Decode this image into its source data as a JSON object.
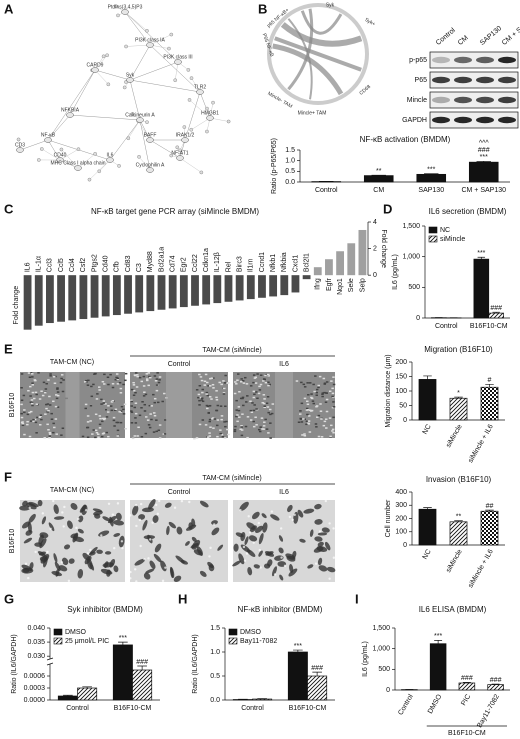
{
  "network": {
    "panel": "A",
    "nodes": [
      "PtdIns(3,4,5)P3",
      "PI3K class IA",
      "PI3K class III",
      "Syk",
      "CARD9",
      "NFKBIA",
      "NF-κB",
      "IL6",
      "HMGB1",
      "TLR2",
      "IRAK1/2",
      "CD40",
      "Cyclophilin A",
      "Calcineurin A",
      "MHC Class I alpha chain",
      "CD3",
      "BAFF",
      "NF-AT1"
    ]
  },
  "blot": {
    "panel": "B",
    "chord_labels": [
      "Syk",
      "Syk+",
      "CD68",
      "Mincle+ TAM",
      "Mincle- TAM",
      "P65 NF-κB",
      "p65 NF-κB+"
    ],
    "lanes": [
      "Control",
      "CM",
      "SAP130",
      "CM + SAP130"
    ],
    "rows": [
      "p-p65",
      "P65",
      "Mincle",
      "GAPDH"
    ]
  },
  "micrographs": [
    {
      "panel": "E",
      "row_label": "B16F10",
      "left": "TAM-CM (NC)",
      "group": "TAM-CM (siMincle)",
      "columns": [
        "Control",
        "IL6"
      ]
    },
    {
      "panel": "F",
      "row_label": "B16F10",
      "left": "TAM-CM (NC)",
      "group": "TAM-CM (siMincle)",
      "columns": [
        "Control",
        "IL6"
      ]
    }
  ],
  "chart_data": [
    {
      "type": "bar",
      "title": "NF-κB activation (BMDM)",
      "ylabel": "Ratio (p-P65/P65)",
      "categories": [
        "Control",
        "CM",
        "SAP130",
        "CM + SAP130"
      ],
      "values": [
        0.02,
        0.3,
        0.36,
        0.93
      ],
      "errors": [
        0.01,
        0.02,
        0.03,
        0.04
      ],
      "color": "#111111",
      "ylim": [
        0,
        1.5
      ],
      "yticks": [
        {
          "value": 0,
          "label": "0.0"
        },
        0.5,
        {
          "value": 1,
          "label": "1.0"
        },
        1.5
      ],
      "annotations": [
        {
          "text": "**",
          "category": 1
        },
        {
          "text": "***",
          "category": 2
        },
        {
          "text": "***",
          "category": 3
        },
        {
          "text": "###",
          "category": 3
        },
        {
          "text": "^^^",
          "category": 3
        }
      ]
    },
    {
      "type": "bar",
      "panel": "C",
      "title": "NF-κB target gene PCR array (siMincle BMDM)",
      "ylabel": "Fold change",
      "ytick_side": "right",
      "categories": [
        "IL6",
        "IL-1α",
        "Ccl3",
        "Ccl5",
        "Ccl4",
        "Csf2",
        "Ptgs2",
        "Cd40",
        "Cfb",
        "Cd83",
        "C3",
        "Myd88",
        "Bcl2a1a",
        "Cd74",
        "Egr2",
        "Ccl22",
        "Cdkn1a",
        "IL-12β",
        "Rel",
        "Birc3",
        "Il1rn",
        "Ccnd1",
        "Nfkb1",
        "Nfkbia",
        "Cxcl1",
        "Bcl2l1",
        "Ifng",
        "Egfr",
        "Nqo1",
        "Sele",
        "Selp"
      ],
      "values": [
        -4.1,
        -3.8,
        -3.6,
        -3.5,
        -3.4,
        -3.3,
        -3.2,
        -3.1,
        -3.0,
        -2.9,
        -2.8,
        -2.7,
        -2.6,
        -2.5,
        -2.4,
        -2.3,
        -2.2,
        -2.1,
        -2.0,
        -1.9,
        -1.8,
        -1.7,
        -1.6,
        -1.5,
        -1.3,
        -0.3,
        0.6,
        1.2,
        1.8,
        2.4,
        3.4
      ],
      "color_negative": "#4a4a4a",
      "color_positive": "#a0a0a0",
      "ylim": [
        -4.5,
        4
      ],
      "yticks": [
        0,
        2,
        4
      ]
    },
    {
      "type": "bar",
      "panel": "D",
      "title": "IL6 secretion (BMDM)",
      "ylabel": "IL6 (pg/mL)",
      "categories": [
        "Control",
        "B16F10-CM"
      ],
      "series": [
        {
          "name": "NC",
          "color": "#111111",
          "pattern": "solid",
          "values": [
            5,
            960
          ],
          "errors": [
            2,
            30
          ]
        },
        {
          "name": "siMincle",
          "color": "#111111",
          "pattern": "hatch",
          "values": [
            3,
            80
          ],
          "errors": [
            2,
            15
          ]
        }
      ],
      "ylim": [
        0,
        1500
      ],
      "yticks": [
        0,
        500,
        {
          "value": 1000,
          "label": "1,000"
        },
        {
          "value": 1500,
          "label": "1,500"
        }
      ],
      "legend": "upper left",
      "annotations": [
        {
          "text": "***",
          "category": 1,
          "series": 0
        },
        {
          "text": "###",
          "category": 1,
          "series": 1
        }
      ]
    },
    {
      "type": "bar",
      "title": "Migration (B16F10)",
      "ylabel": "Migration distance (μm)",
      "categories": [
        "NC",
        "siMincle",
        "siMincle + IL6"
      ],
      "values": [
        140,
        75,
        113
      ],
      "errors": [
        12,
        4,
        10
      ],
      "color": "#111111",
      "patterns": [
        "solid",
        "hatch",
        "check"
      ],
      "ylim": [
        0,
        200
      ],
      "yticks": [
        0,
        50,
        100,
        150,
        200
      ],
      "annotations": [
        {
          "text": "*",
          "category": 1
        },
        {
          "text": "#",
          "category": 2
        }
      ]
    },
    {
      "type": "bar",
      "title": "Invasion (B16F10)",
      "ylabel": "Cell number",
      "categories": [
        "NC",
        "siMincle",
        "siMincle + IL6"
      ],
      "values": [
        270,
        175,
        255
      ],
      "errors": [
        12,
        8,
        8
      ],
      "color": "#111111",
      "patterns": [
        "solid",
        "hatch",
        "check"
      ],
      "ylim": [
        0,
        400
      ],
      "yticks": [
        0,
        100,
        200,
        300,
        400
      ],
      "annotations": [
        {
          "text": "**",
          "category": 1
        },
        {
          "text": "##",
          "category": 2
        }
      ]
    },
    {
      "type": "bar",
      "panel": "G",
      "title": "Syk inhibitor (BMDM)",
      "ylabel": "Ratio (IL6/GAPDH)",
      "categories": [
        "Control",
        "B16F10-CM"
      ],
      "series": [
        {
          "name": "DMSO",
          "color": "#111111",
          "pattern": "solid",
          "values": [
            0.0001,
            0.034
          ],
          "errors": [
            2e-05,
            0.001
          ]
        },
        {
          "name": "25 μmol/L PIC",
          "color": "#111111",
          "pattern": "hatch",
          "values": [
            0.0003,
            0.00075
          ],
          "errors": [
            3e-05,
            0.0001
          ]
        }
      ],
      "ylim": [
        0,
        0.04
      ],
      "axis_break": [
        0.0009,
        0.029
      ],
      "yticks": [
        {
          "value": 0,
          "label": "0.0000"
        },
        {
          "value": 0.0003,
          "label": "0.0003"
        },
        {
          "value": 0.0006,
          "label": "0.0006"
        },
        {
          "value": 0.03,
          "label": "0.030"
        },
        {
          "value": 0.035,
          "label": "0.035"
        },
        {
          "value": 0.04,
          "label": "0.040"
        }
      ],
      "legend": "upper left",
      "annotations": [
        {
          "text": "***",
          "category": 1,
          "series": 0
        },
        {
          "text": "###",
          "category": 1,
          "series": 1
        }
      ]
    },
    {
      "type": "bar",
      "panel": "H",
      "title": "NF-κB inhibitor (BMDM)",
      "ylabel": "Ratio (IL6/GAPDH)",
      "categories": [
        "Control",
        "B16F10-CM"
      ],
      "series": [
        {
          "name": "DMSO",
          "color": "#111111",
          "pattern": "solid",
          "values": [
            0.01,
            1.0
          ],
          "errors": [
            0.005,
            0.04
          ]
        },
        {
          "name": "Bay11-7082",
          "color": "#111111",
          "pattern": "hatch",
          "values": [
            0.02,
            0.5
          ],
          "errors": [
            0.01,
            0.08
          ]
        }
      ],
      "ylim": [
        0,
        1.5
      ],
      "yticks": [
        {
          "value": 0,
          "label": "0.0"
        },
        0.5,
        {
          "value": 1,
          "label": "1.0"
        },
        1.5
      ],
      "legend": "upper left",
      "annotations": [
        {
          "text": "***",
          "category": 1,
          "series": 0
        },
        {
          "text": "###",
          "category": 1,
          "series": 1
        }
      ]
    },
    {
      "type": "bar",
      "panel": "I",
      "title": "IL6 ELISA (BMDM)",
      "ylabel": "IL6 (pg/mL)",
      "categories": [
        "Control",
        "DMSO",
        "PIC",
        "Bay11-7082"
      ],
      "values": [
        10,
        1120,
        170,
        130
      ],
      "errors": [
        3,
        80,
        15,
        12
      ],
      "color": "#111111",
      "patterns": [
        "solid",
        "solid",
        "hatch",
        "hatch"
      ],
      "ylim": [
        0,
        1500
      ],
      "yticks": [
        0,
        500,
        {
          "value": 1000,
          "label": "1,000"
        },
        {
          "value": 1500,
          "label": "1,500"
        }
      ],
      "group": {
        "label": "B16F10-CM",
        "from": 1,
        "to": 3
      },
      "annotations": [
        {
          "text": "***",
          "category": 1
        },
        {
          "text": "###",
          "category": 2
        },
        {
          "text": "###",
          "category": 3
        }
      ]
    }
  ]
}
